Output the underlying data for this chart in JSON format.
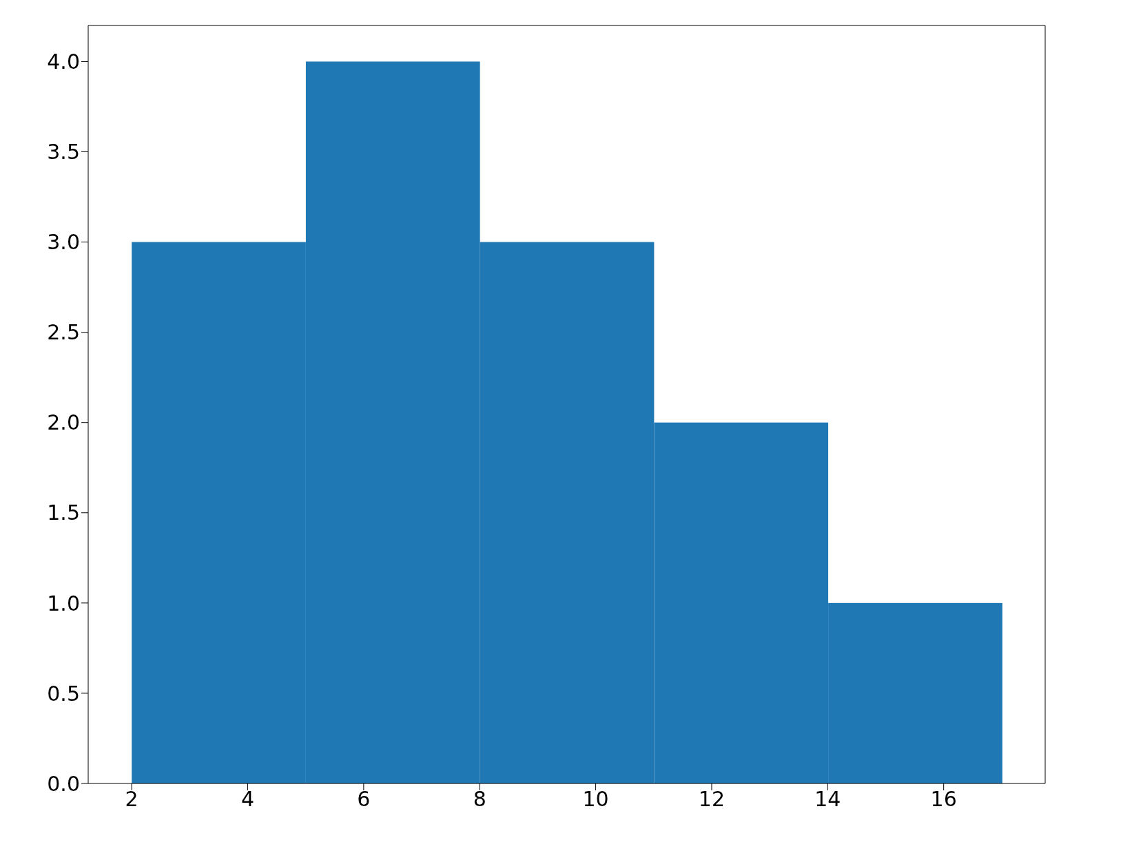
{
  "chart_data": {
    "type": "histogram",
    "bins": [
      2,
      5,
      8,
      11,
      14,
      17
    ],
    "values": [
      3,
      4,
      3,
      2,
      1
    ],
    "color": "#1f77b4",
    "xlim": [
      1.25,
      17.75
    ],
    "xticks": [
      2,
      4,
      6,
      8,
      10,
      12,
      14,
      16
    ],
    "ylim": [
      0,
      4.2
    ],
    "yticks": [
      {
        "value": 0,
        "label": "0.0"
      },
      {
        "value": 0.5,
        "label": "0.5"
      },
      {
        "value": 1,
        "label": "1.0"
      },
      {
        "value": 1.5,
        "label": "1.5"
      },
      {
        "value": 2,
        "label": "2.0"
      },
      {
        "value": 2.5,
        "label": "2.5"
      },
      {
        "value": 3,
        "label": "3.0"
      },
      {
        "value": 3.5,
        "label": "3.5"
      },
      {
        "value": 4,
        "label": "4.0"
      }
    ],
    "grid": false
  }
}
